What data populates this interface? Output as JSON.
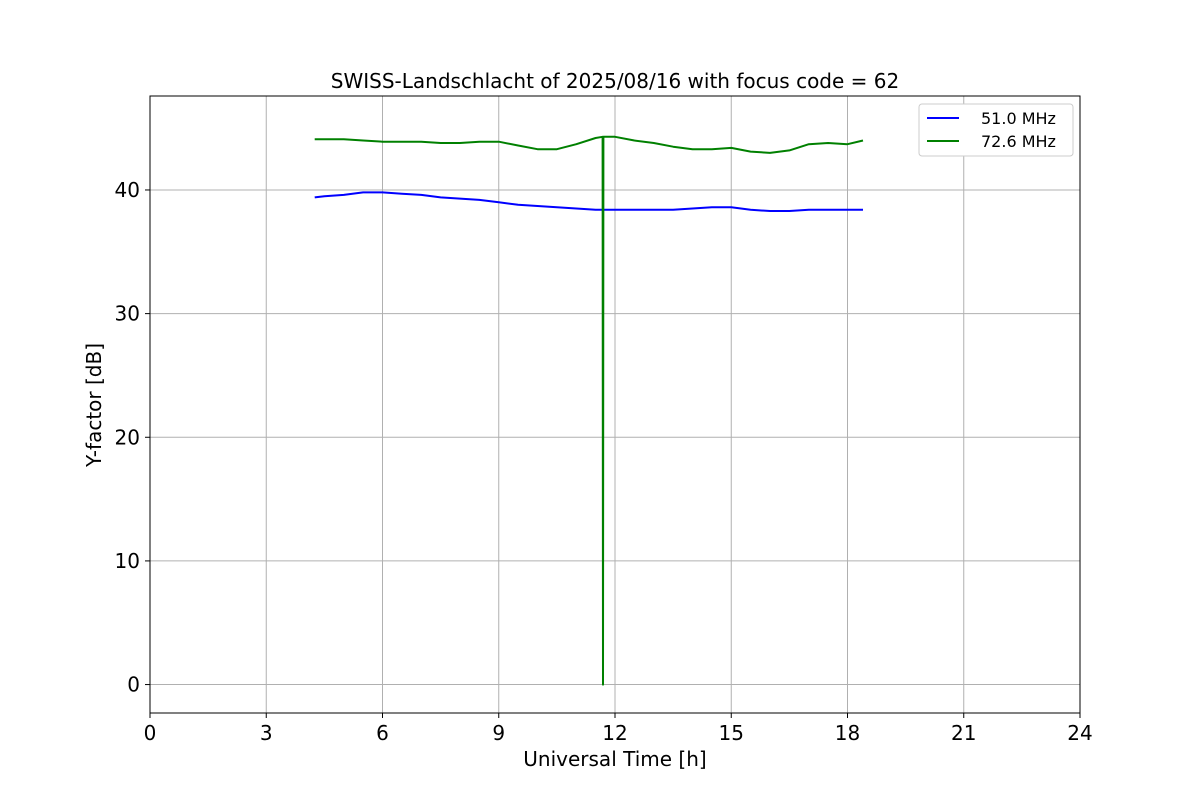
{
  "chart_data": {
    "type": "line",
    "title": "SWISS-Landschlacht of 2025/08/16 with focus code = 62",
    "xlabel": "Universal Time [h]",
    "ylabel": "Y-factor [dB]",
    "xlim": [
      0,
      24
    ],
    "ylim": [
      -2.3,
      47.6
    ],
    "xticks": [
      0,
      3,
      6,
      9,
      12,
      15,
      18,
      21,
      24
    ],
    "yticks": [
      0,
      10,
      20,
      30,
      40
    ],
    "xtick_labels": [
      "0",
      "3",
      "6",
      "9",
      "12",
      "15",
      "18",
      "21",
      "24"
    ],
    "ytick_labels": [
      "0",
      "10",
      "20",
      "30",
      "40"
    ],
    "grid": true,
    "legend_position": "upper-right",
    "series": [
      {
        "name": "51.0 MHz",
        "color": "#0000ff",
        "x": [
          4.25,
          4.5,
          5.0,
          5.5,
          6.0,
          6.5,
          7.0,
          7.5,
          8.0,
          8.5,
          9.0,
          9.5,
          10.0,
          10.5,
          11.0,
          11.5,
          12.0,
          12.5,
          13.0,
          13.5,
          14.0,
          14.5,
          15.0,
          15.5,
          16.0,
          16.5,
          17.0,
          17.5,
          18.0,
          18.4
        ],
        "y": [
          39.4,
          39.5,
          39.6,
          39.8,
          39.8,
          39.7,
          39.6,
          39.4,
          39.3,
          39.2,
          39.0,
          38.8,
          38.7,
          38.6,
          38.5,
          38.4,
          38.4,
          38.4,
          38.4,
          38.4,
          38.5,
          38.6,
          38.6,
          38.4,
          38.3,
          38.3,
          38.4,
          38.4,
          38.4,
          38.4
        ]
      },
      {
        "name": "72.6 MHz",
        "color": "#008000",
        "x": [
          4.25,
          4.5,
          5.0,
          5.5,
          6.0,
          6.5,
          7.0,
          7.5,
          8.0,
          8.5,
          9.0,
          9.5,
          10.0,
          10.5,
          11.0,
          11.5,
          11.68,
          11.69,
          11.7,
          12.0,
          12.5,
          13.0,
          13.5,
          14.0,
          14.5,
          15.0,
          15.5,
          16.0,
          16.5,
          17.0,
          17.5,
          18.0,
          18.4
        ],
        "y": [
          44.1,
          44.1,
          44.1,
          44.0,
          43.9,
          43.9,
          43.9,
          43.8,
          43.8,
          43.9,
          43.9,
          43.6,
          43.3,
          43.3,
          43.7,
          44.2,
          44.3,
          0.0,
          44.3,
          44.3,
          44.0,
          43.8,
          43.5,
          43.3,
          43.3,
          43.4,
          43.1,
          43.0,
          43.2,
          43.7,
          43.8,
          43.7,
          44.0
        ]
      }
    ]
  }
}
